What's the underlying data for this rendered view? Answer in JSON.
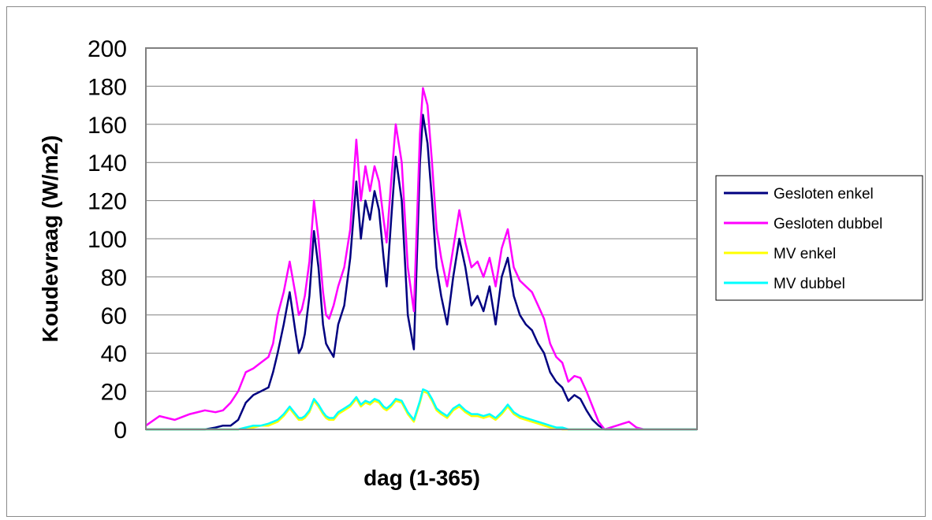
{
  "chart_data": {
    "type": "line",
    "title": "",
    "xlabel": "dag (1-365)",
    "ylabel": "Koudevraag (W/m2)",
    "xlim": [
      1,
      365
    ],
    "ylim": [
      0,
      200
    ],
    "yticks": [
      "0",
      "20",
      "40",
      "60",
      "80",
      "100",
      "120",
      "140",
      "160",
      "180",
      "200"
    ],
    "grid": "horizontal",
    "legend": "right",
    "x": [
      1,
      10,
      20,
      30,
      40,
      47,
      52,
      57,
      62,
      67,
      72,
      77,
      82,
      85,
      88,
      92,
      96,
      100,
      102,
      104,
      106,
      109,
      112,
      115,
      118,
      120,
      122,
      125,
      128,
      132,
      136,
      140,
      143,
      146,
      149,
      152,
      155,
      158,
      160,
      163,
      166,
      170,
      174,
      178,
      182,
      184,
      187,
      190,
      193,
      196,
      200,
      204,
      208,
      212,
      216,
      220,
      224,
      228,
      232,
      236,
      240,
      244,
      248,
      252,
      256,
      260,
      264,
      268,
      272,
      276,
      280,
      284,
      288,
      292,
      296,
      300,
      304,
      308,
      312,
      316,
      320,
      325,
      330,
      335,
      340,
      345,
      350,
      355,
      360,
      365
    ],
    "series": [
      {
        "name": "Gesloten enkel",
        "color": "#000080",
        "values": [
          0,
          0,
          0,
          0,
          0,
          1,
          2,
          2,
          5,
          14,
          18,
          20,
          22,
          30,
          40,
          55,
          72,
          50,
          40,
          43,
          50,
          70,
          104,
          85,
          55,
          45,
          42,
          38,
          55,
          65,
          90,
          130,
          100,
          120,
          110,
          125,
          115,
          90,
          75,
          110,
          143,
          120,
          60,
          42,
          140,
          165,
          150,
          120,
          85,
          70,
          55,
          80,
          100,
          85,
          65,
          70,
          62,
          75,
          55,
          80,
          90,
          70,
          60,
          55,
          52,
          45,
          40,
          30,
          25,
          22,
          15,
          18,
          16,
          10,
          5,
          2,
          0,
          0,
          0,
          0,
          0,
          0,
          0,
          0,
          0,
          0,
          0,
          0,
          0,
          0
        ]
      },
      {
        "name": "Gesloten dubbel",
        "color": "#ff00ff",
        "values": [
          2,
          7,
          5,
          8,
          10,
          9,
          10,
          14,
          20,
          30,
          32,
          35,
          38,
          45,
          60,
          72,
          88,
          70,
          60,
          63,
          70,
          88,
          120,
          100,
          72,
          60,
          58,
          65,
          75,
          85,
          105,
          152,
          120,
          138,
          125,
          138,
          130,
          110,
          98,
          130,
          160,
          140,
          85,
          62,
          155,
          179,
          170,
          140,
          105,
          90,
          75,
          95,
          115,
          98,
          85,
          88,
          80,
          90,
          75,
          95,
          105,
          85,
          78,
          75,
          72,
          65,
          58,
          45,
          38,
          35,
          25,
          28,
          27,
          20,
          12,
          4,
          0,
          1,
          2,
          3,
          4,
          1,
          0,
          0,
          0,
          0,
          0,
          0,
          0,
          0
        ]
      },
      {
        "name": "MV enkel",
        "color": "#ffff00",
        "values": [
          0,
          0,
          0,
          0,
          0,
          0,
          0,
          0,
          0,
          1,
          1,
          2,
          2,
          3,
          4,
          7,
          11,
          7,
          5,
          5,
          6,
          9,
          15,
          12,
          8,
          6,
          5,
          5,
          8,
          10,
          12,
          16,
          12,
          14,
          13,
          15,
          14,
          11,
          10,
          12,
          15,
          14,
          8,
          4,
          14,
          20,
          19,
          15,
          10,
          8,
          6,
          10,
          12,
          9,
          7,
          7,
          6,
          7,
          5,
          8,
          12,
          8,
          6,
          5,
          4,
          3,
          2,
          1,
          1,
          0,
          0,
          0,
          0,
          0,
          0,
          0,
          0,
          0,
          0,
          0,
          0,
          0,
          0,
          0,
          0,
          0,
          0,
          0,
          0,
          0
        ]
      },
      {
        "name": "MV dubbel",
        "color": "#00ffff",
        "values": [
          0,
          0,
          0,
          0,
          0,
          0,
          0,
          0,
          0,
          1,
          2,
          2,
          3,
          4,
          5,
          8,
          12,
          8,
          6,
          6,
          7,
          10,
          16,
          13,
          9,
          7,
          6,
          6,
          9,
          11,
          13,
          17,
          13,
          15,
          14,
          16,
          15,
          12,
          11,
          13,
          16,
          15,
          9,
          5,
          15,
          21,
          20,
          16,
          11,
          9,
          7,
          11,
          13,
          10,
          8,
          8,
          7,
          8,
          6,
          9,
          13,
          9,
          7,
          6,
          5,
          4,
          3,
          2,
          1,
          1,
          0,
          0,
          0,
          0,
          0,
          0,
          0,
          0,
          0,
          0,
          0,
          0,
          0,
          0,
          0,
          0,
          0,
          0,
          0,
          0
        ]
      }
    ]
  }
}
